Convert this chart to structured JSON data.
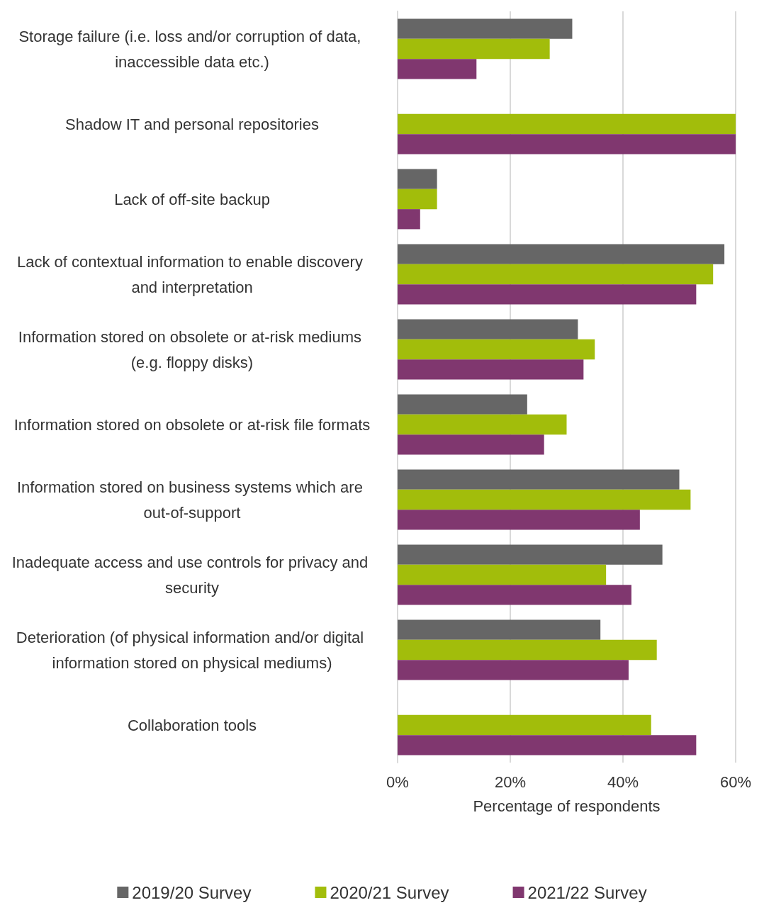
{
  "chart_data": {
    "type": "bar",
    "orientation": "horizontal",
    "xlabel": "Percentage of respondents",
    "categories": [
      "Storage failure (i.e. loss and/or corruption of data, inaccessible data etc.)",
      "Shadow IT and personal repositories",
      "Lack of off-site backup",
      "Lack of contextual information to enable discovery and interpretation",
      "Information stored on obsolete or at-risk mediums (e.g. floppy disks)",
      "Information stored on obsolete or at-risk file formats",
      "Information stored on business systems which are out-of-support",
      "Inadequate access and use controls for privacy and security",
      "Deterioration (of physical information and/or digital information stored on physical mediums)",
      "Collaboration tools"
    ],
    "series": [
      {
        "name": "2019/20 Survey",
        "color": "#666666",
        "values": [
          31,
          null,
          7,
          58,
          32,
          23,
          50,
          47,
          36,
          null
        ]
      },
      {
        "name": "2020/21 Survey",
        "color": "#a2bd0b",
        "values": [
          27,
          60,
          7,
          56,
          35,
          30,
          52,
          37,
          46,
          45
        ]
      },
      {
        "name": "2021/22 Survey",
        "color": "#80376f",
        "values": [
          14,
          60,
          4,
          53,
          33,
          26,
          43,
          41.5,
          41,
          53
        ]
      }
    ],
    "xlim": [
      0,
      60
    ],
    "xticks": [
      {
        "value": 0,
        "label": "0%"
      },
      {
        "value": 20,
        "label": "20%"
      },
      {
        "value": 40,
        "label": "40%"
      },
      {
        "value": 60,
        "label": "60%"
      }
    ],
    "grid": "x",
    "legend": "bottom"
  }
}
